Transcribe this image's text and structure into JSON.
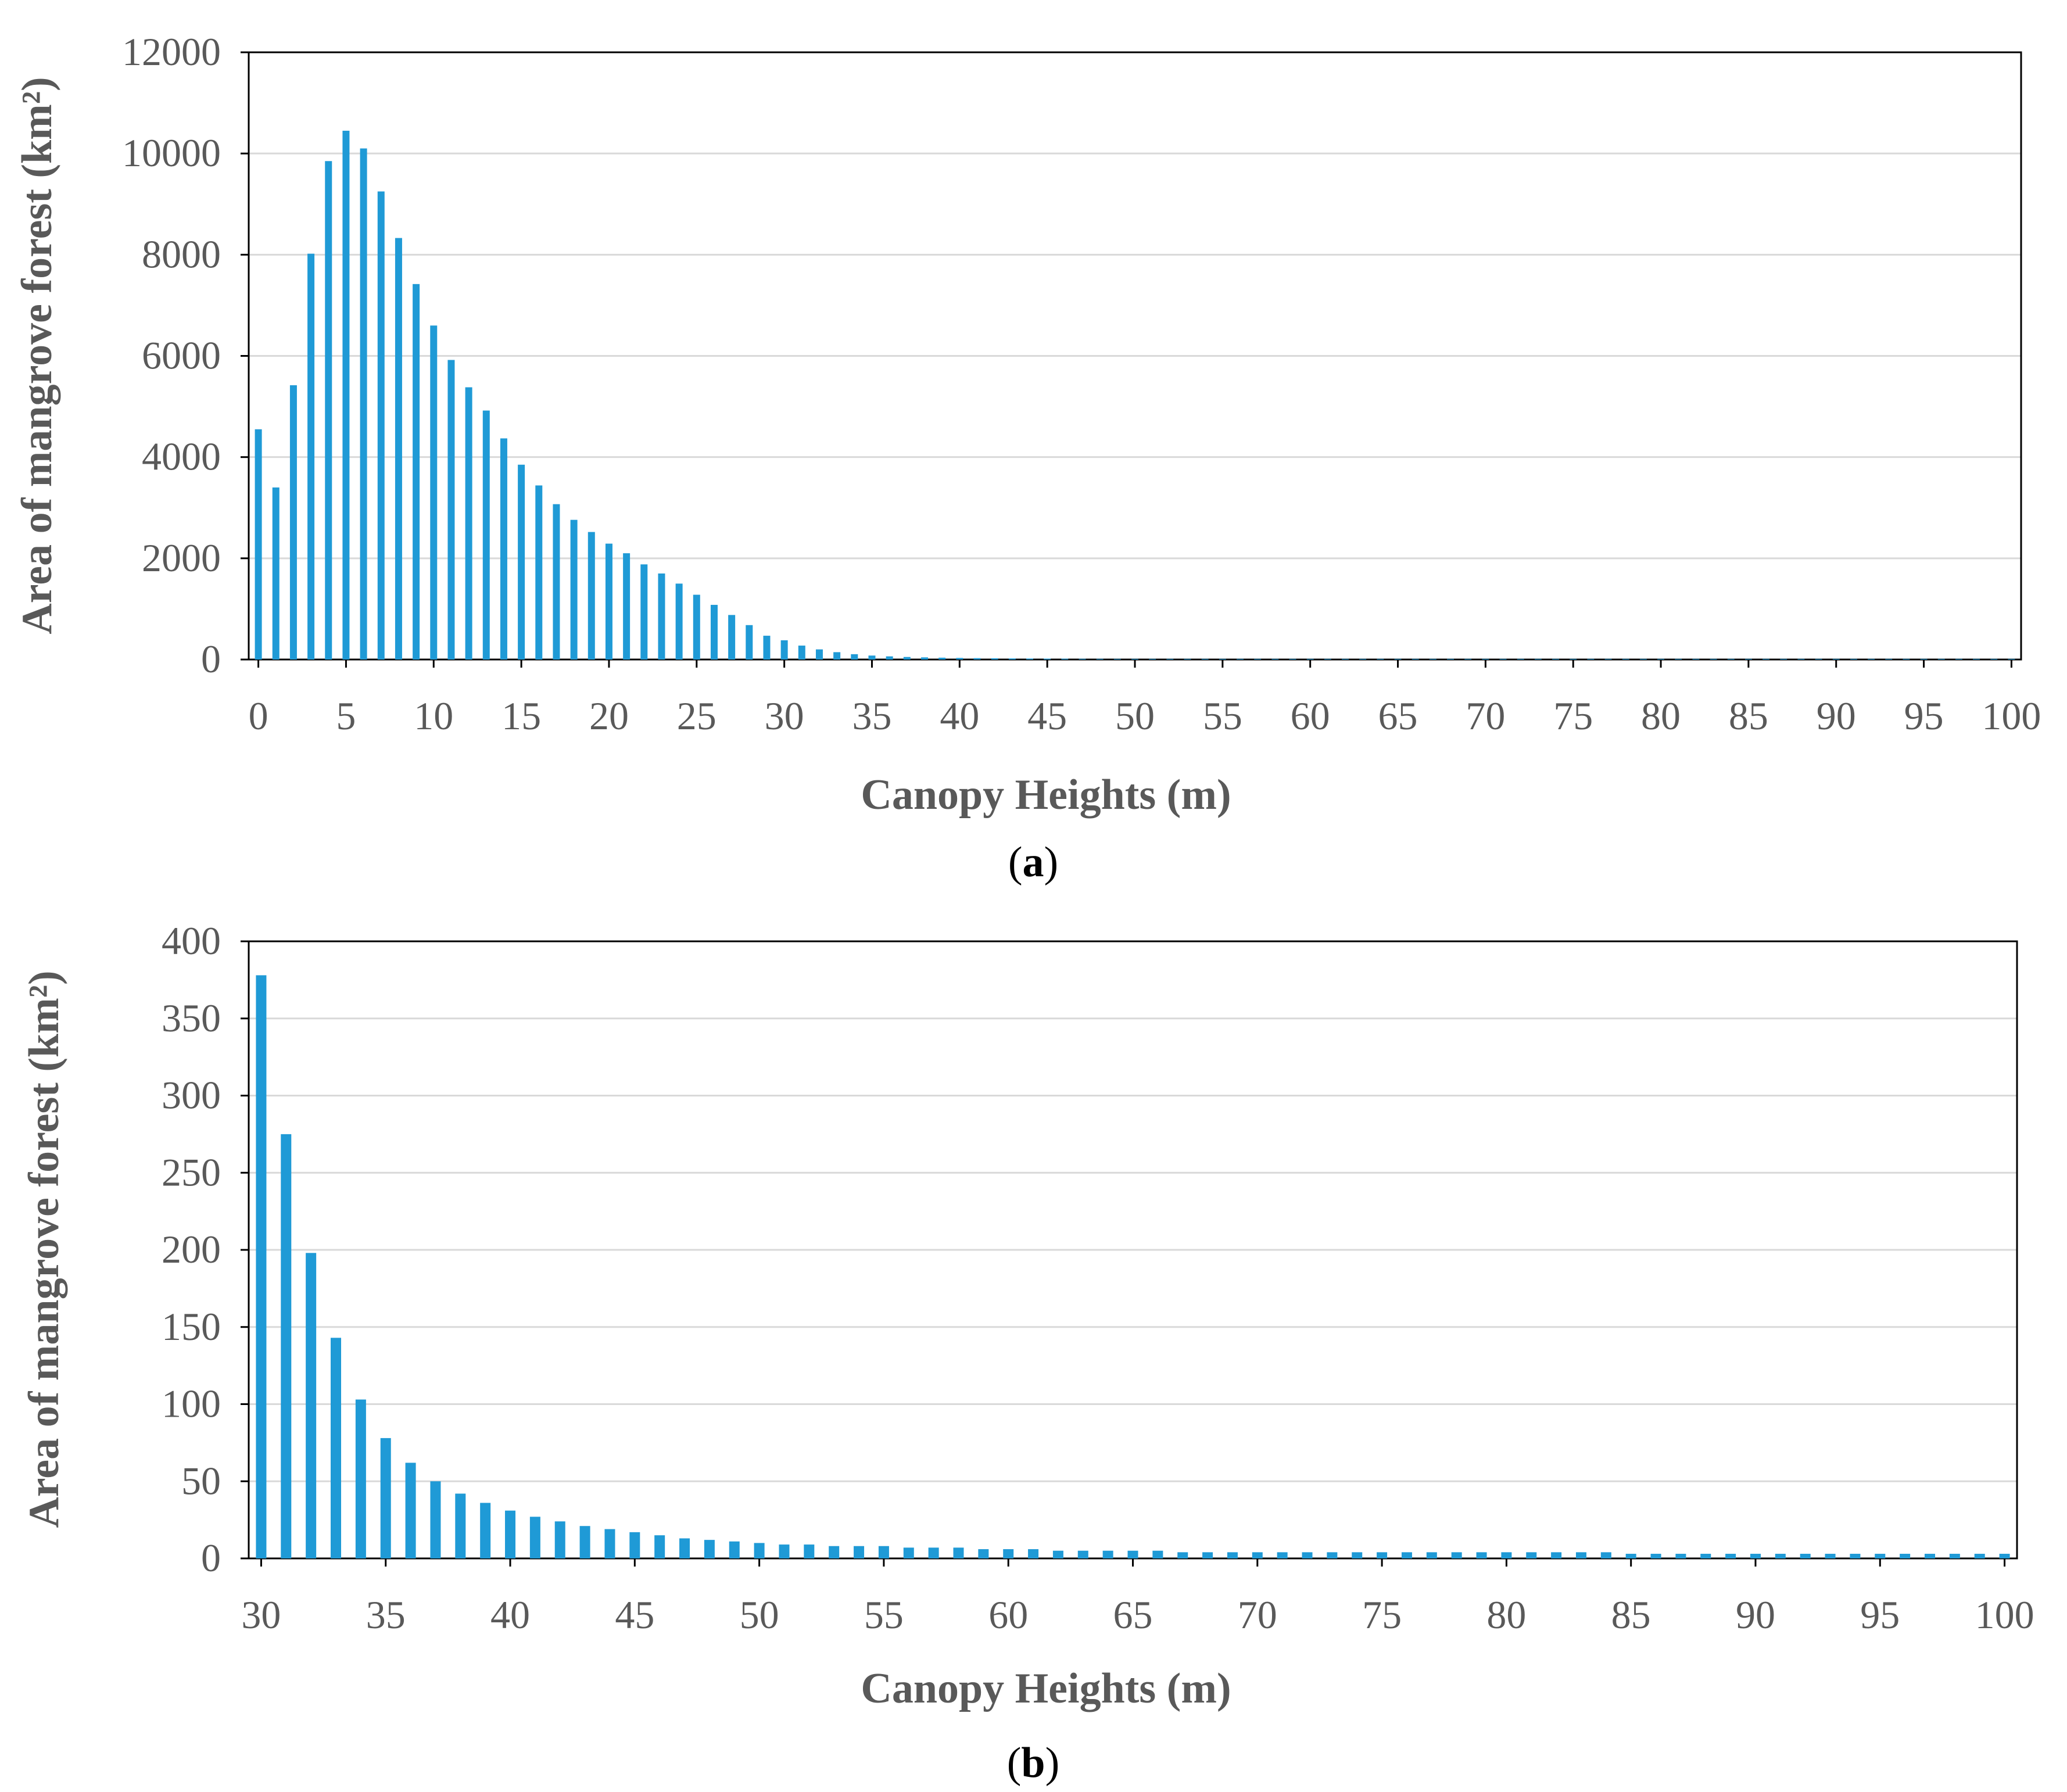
{
  "chart_data": [
    {
      "type": "bar",
      "panel": "(a)",
      "panel_letter": "a",
      "title": "",
      "xlabel": "Canopy Heights (m)",
      "ylabel": "Area of mangrove forest (km²)",
      "xlim": [
        0,
        100
      ],
      "ylim": [
        0,
        12000
      ],
      "grid": true,
      "bar_color": "#1f9ad6",
      "x_ticks": [
        "0",
        "5",
        "10",
        "15",
        "20",
        "25",
        "30",
        "35",
        "40",
        "45",
        "50",
        "55",
        "60",
        "65",
        "70",
        "75",
        "80",
        "85",
        "90",
        "95",
        "100"
      ],
      "y_ticks": [
        "0",
        "2000",
        "4000",
        "6000",
        "8000",
        "10000",
        "12000"
      ],
      "x": [
        0,
        1,
        2,
        3,
        4,
        5,
        6,
        7,
        8,
        9,
        10,
        11,
        12,
        13,
        14,
        15,
        16,
        17,
        18,
        19,
        20,
        21,
        22,
        23,
        24,
        25,
        26,
        27,
        28,
        29,
        30,
        31,
        32,
        33,
        34,
        35,
        36,
        37,
        38,
        39,
        40,
        41,
        42,
        43,
        44,
        45,
        46,
        47,
        48,
        49,
        50,
        51,
        52,
        53,
        54,
        55,
        56,
        57,
        58,
        59,
        60,
        61,
        62,
        63,
        64,
        65,
        66,
        67,
        68,
        69,
        70,
        71,
        72,
        73,
        74,
        75,
        76,
        77,
        78,
        79,
        80,
        81,
        82,
        83,
        84,
        85,
        86,
        87,
        88,
        89,
        90,
        91,
        92,
        93,
        94,
        95,
        96,
        97,
        98,
        99,
        100
      ],
      "values": [
        4550,
        3400,
        5420,
        8020,
        9850,
        10450,
        10100,
        9250,
        8330,
        7420,
        6600,
        5920,
        5380,
        4920,
        4370,
        3850,
        3440,
        3070,
        2760,
        2520,
        2290,
        2100,
        1880,
        1700,
        1500,
        1280,
        1080,
        880,
        680,
        470,
        380,
        275,
        200,
        145,
        105,
        78,
        62,
        50,
        42,
        36,
        31,
        27,
        24,
        21,
        19,
        17,
        15,
        13,
        12,
        11,
        10,
        9,
        9,
        8,
        8,
        8,
        7,
        7,
        7,
        6,
        6,
        6,
        5,
        5,
        5,
        5,
        5,
        4,
        4,
        4,
        4,
        4,
        4,
        4,
        4,
        4,
        4,
        4,
        4,
        4,
        4,
        4,
        4,
        4,
        4,
        3,
        3,
        3,
        3,
        3,
        3,
        3,
        3,
        3,
        3,
        3,
        3,
        3,
        3,
        3,
        3
      ]
    },
    {
      "type": "bar",
      "panel": "(b)",
      "panel_letter": "b",
      "title": "",
      "xlabel": "Canopy Heights (m)",
      "ylabel": "Area of mangrove forest (km²)",
      "xlim": [
        30,
        100
      ],
      "ylim": [
        0,
        400
      ],
      "grid": true,
      "bar_color": "#1f9ad6",
      "x_ticks": [
        "30",
        "35",
        "40",
        "45",
        "50",
        "55",
        "60",
        "65",
        "70",
        "75",
        "80",
        "85",
        "90",
        "95",
        "100"
      ],
      "y_ticks": [
        "0",
        "50",
        "100",
        "150",
        "200",
        "250",
        "300",
        "350",
        "400"
      ],
      "x": [
        30,
        31,
        32,
        33,
        34,
        35,
        36,
        37,
        38,
        39,
        40,
        41,
        42,
        43,
        44,
        45,
        46,
        47,
        48,
        49,
        50,
        51,
        52,
        53,
        54,
        55,
        56,
        57,
        58,
        59,
        60,
        61,
        62,
        63,
        64,
        65,
        66,
        67,
        68,
        69,
        70,
        71,
        72,
        73,
        74,
        75,
        76,
        77,
        78,
        79,
        80,
        81,
        82,
        83,
        84,
        85,
        86,
        87,
        88,
        89,
        90,
        91,
        92,
        93,
        94,
        95,
        96,
        97,
        98,
        99,
        100
      ],
      "values": [
        378,
        275,
        198,
        143,
        103,
        78,
        62,
        50,
        42,
        36,
        31,
        27,
        24,
        21,
        19,
        17,
        15,
        13,
        12,
        11,
        10,
        9,
        9,
        8,
        8,
        8,
        7,
        7,
        7,
        6,
        6,
        6,
        5,
        5,
        5,
        5,
        5,
        4,
        4,
        4,
        4,
        4,
        4,
        4,
        4,
        4,
        4,
        4,
        4,
        4,
        4,
        4,
        4,
        4,
        4,
        3,
        3,
        3,
        3,
        3,
        3,
        3,
        3,
        3,
        3,
        3,
        3,
        3,
        3,
        3,
        3
      ]
    }
  ]
}
